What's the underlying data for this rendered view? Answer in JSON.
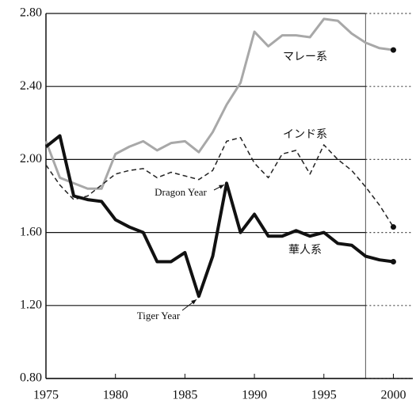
{
  "chart_data": {
    "type": "line",
    "x": [
      1975,
      1976,
      1977,
      1978,
      1979,
      1980,
      1981,
      1982,
      1983,
      1984,
      1985,
      1986,
      1987,
      1988,
      1989,
      1990,
      1991,
      1992,
      1993,
      1994,
      1995,
      1996,
      1997,
      1998,
      1999,
      2000
    ],
    "series": [
      {
        "name": "マレー系",
        "color": "#a8a8a8",
        "style": "solid",
        "values": [
          2.1,
          1.9,
          1.87,
          1.84,
          1.84,
          2.03,
          2.07,
          2.1,
          2.05,
          2.09,
          2.1,
          2.04,
          2.15,
          2.3,
          2.42,
          2.7,
          2.62,
          2.68,
          2.68,
          2.67,
          2.77,
          2.76,
          2.69,
          2.64,
          2.61,
          2.6
        ]
      },
      {
        "name": "インド系",
        "color": "#222222",
        "style": "dashed",
        "values": [
          1.97,
          1.86,
          1.78,
          1.8,
          1.86,
          1.92,
          1.94,
          1.95,
          1.9,
          1.93,
          1.91,
          1.89,
          1.94,
          2.1,
          2.12,
          1.98,
          1.9,
          2.03,
          2.05,
          1.92,
          2.08,
          2.0,
          1.94,
          1.85,
          1.75,
          1.63
        ]
      },
      {
        "name": "華人系",
        "color": "#111111",
        "style": "solid",
        "values": [
          2.07,
          2.13,
          1.8,
          1.78,
          1.77,
          1.67,
          1.63,
          1.6,
          1.44,
          1.44,
          1.49,
          1.25,
          1.47,
          1.87,
          1.6,
          1.7,
          1.58,
          1.58,
          1.61,
          1.58,
          1.6,
          1.54,
          1.53,
          1.47,
          1.45,
          1.44
        ]
      }
    ],
    "annotations": [
      {
        "text": "Dragon Year",
        "x": 1988
      },
      {
        "text": "Tiger Year",
        "x": 1986
      }
    ],
    "reference_line_x": 1998,
    "xlim": [
      1975,
      2001.4
    ],
    "xticks": [
      1975,
      1980,
      1985,
      1990,
      1995,
      2000
    ],
    "ylim": [
      0.8,
      2.8
    ],
    "yticks": [
      {
        "value": 0.8,
        "label": "0.80"
      },
      {
        "value": 1.2,
        "label": "1.20"
      },
      {
        "value": 1.6,
        "label": "1.60"
      },
      {
        "value": 2.0,
        "label": "2.00"
      },
      {
        "value": 2.4,
        "label": "2.40"
      },
      {
        "value": 2.8,
        "label": "2.80"
      }
    ],
    "grid": true
  }
}
